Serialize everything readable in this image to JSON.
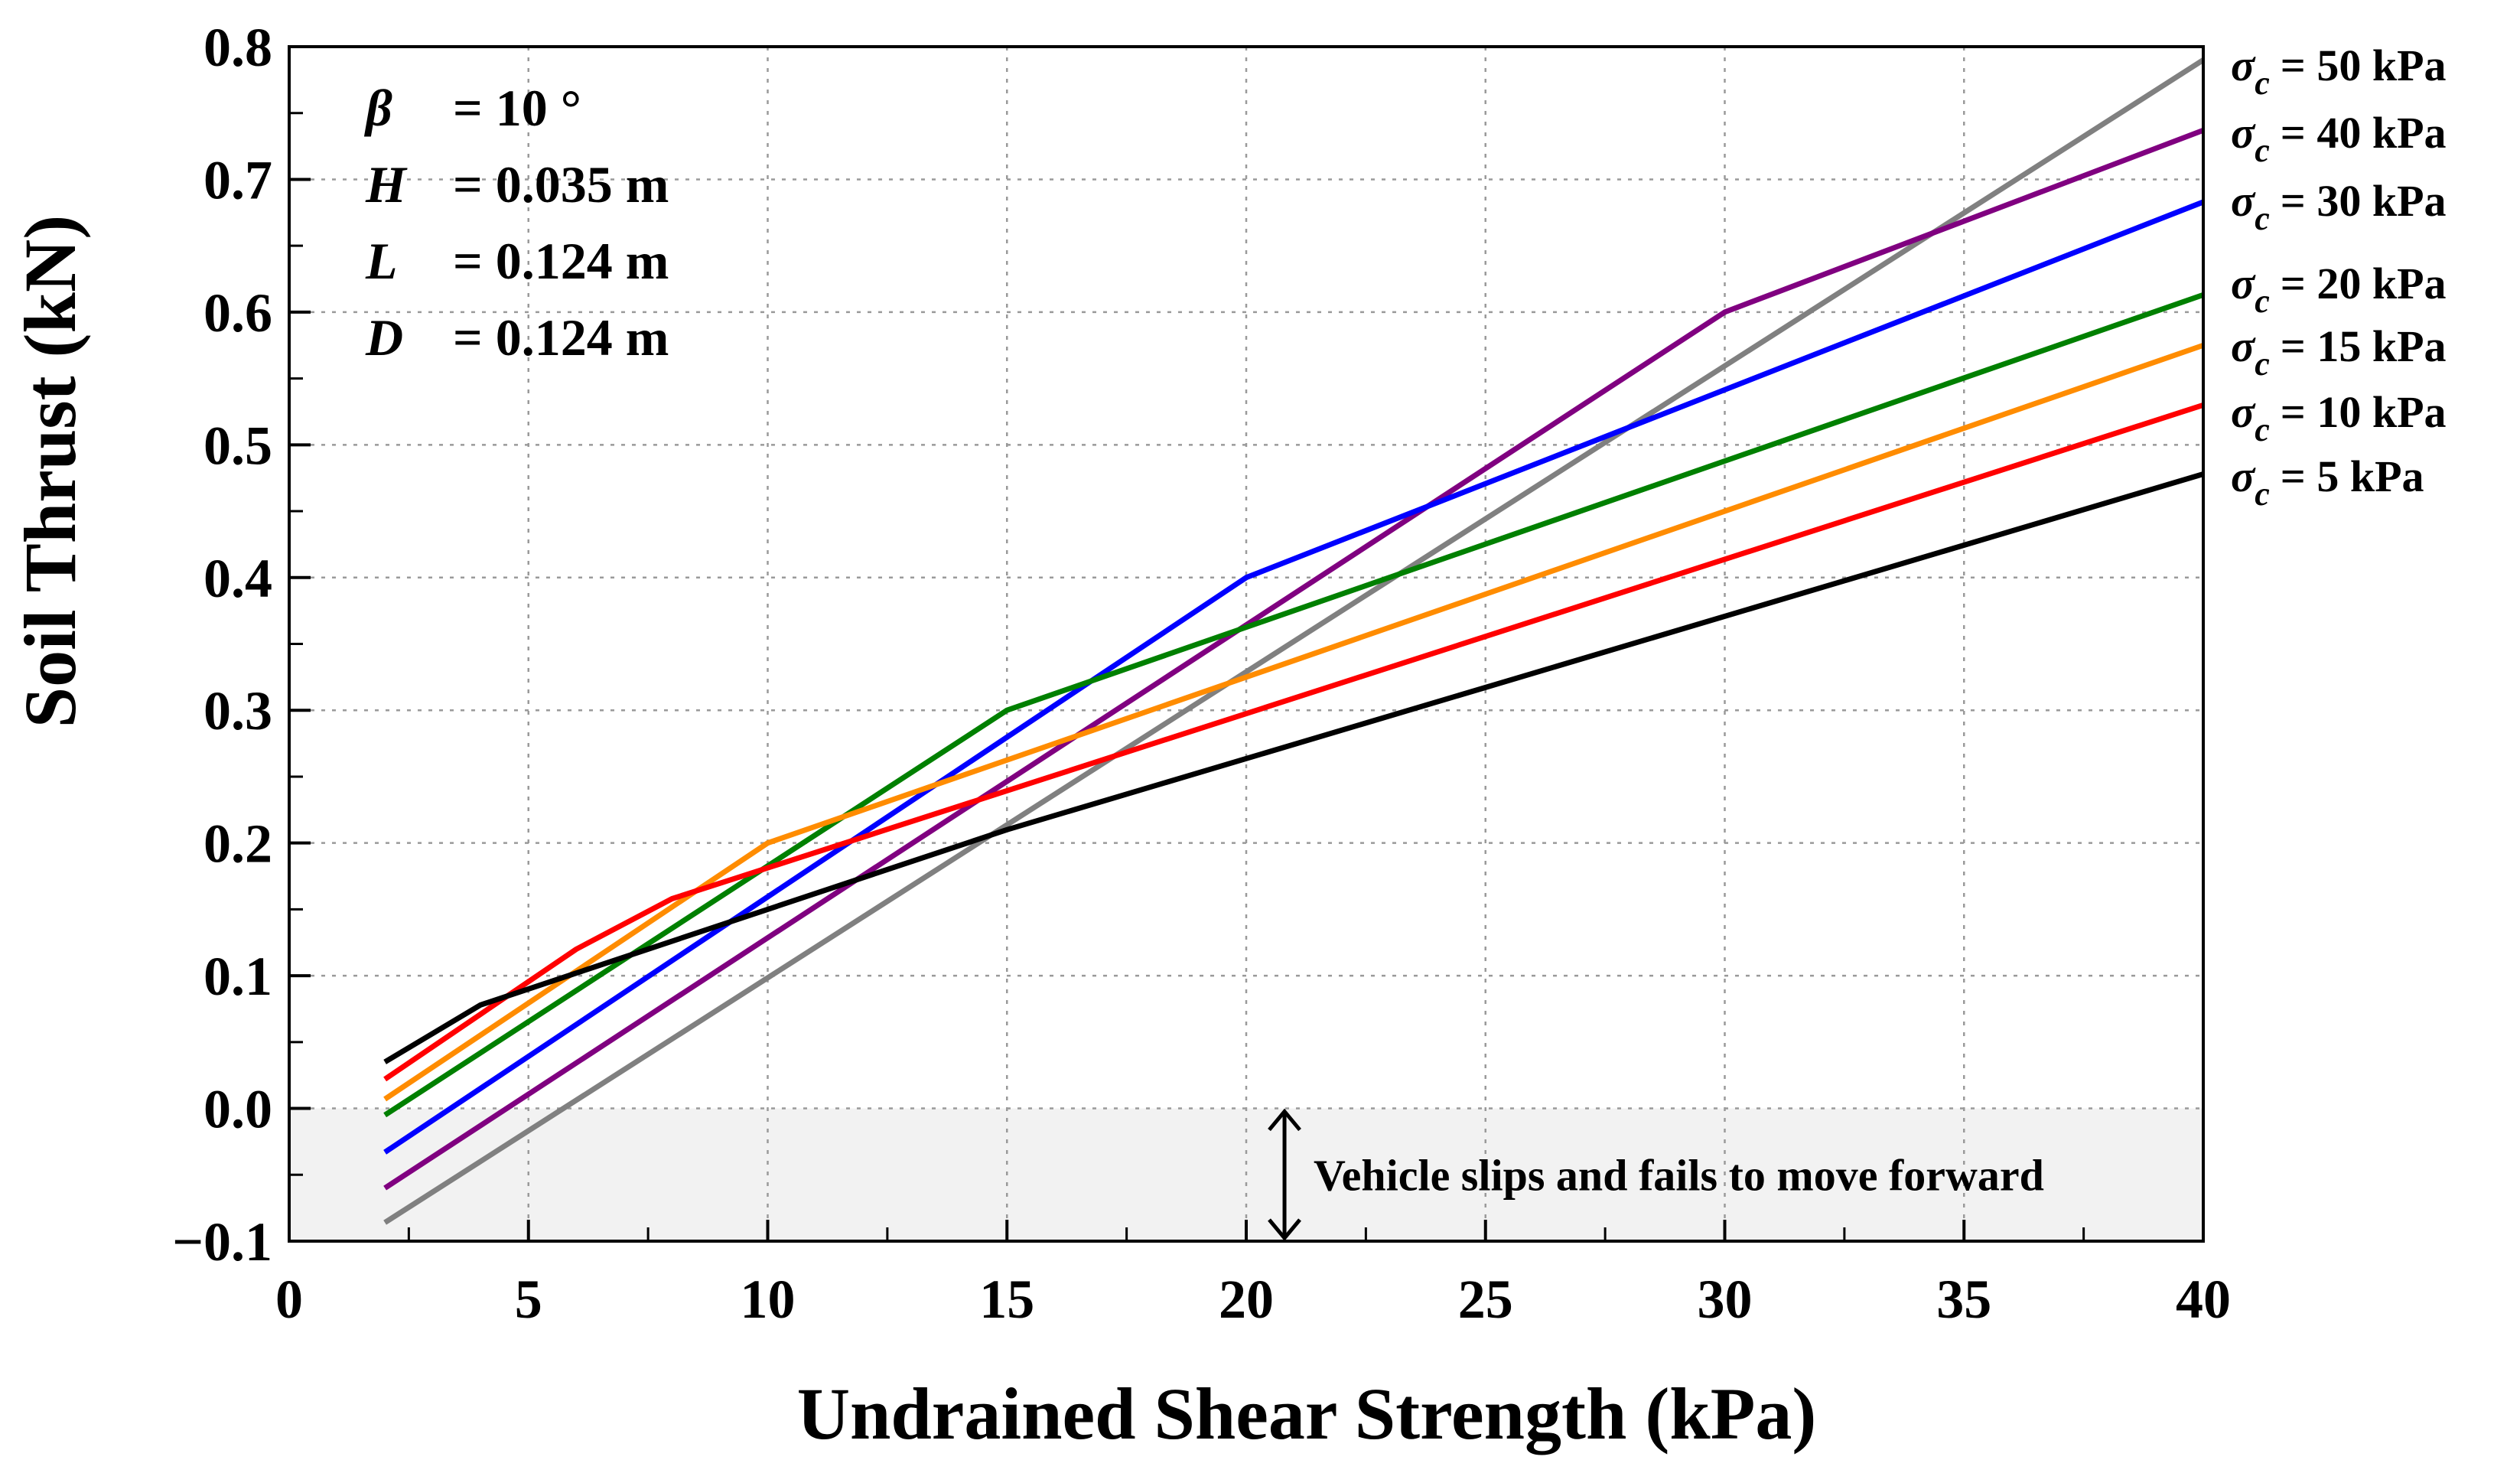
{
  "chart_data": {
    "type": "line",
    "xlabel": "Undrained Shear Strength (kPa)",
    "ylabel": "Soil Thrust (kN)",
    "xlim": [
      0,
      40
    ],
    "ylim": [
      -0.1,
      0.8
    ],
    "xticks": [
      0,
      5,
      10,
      15,
      20,
      25,
      30,
      35,
      40
    ],
    "yticks": [
      -0.1,
      0.0,
      0.1,
      0.2,
      0.3,
      0.4,
      0.5,
      0.6,
      0.7,
      0.8
    ],
    "ytick_labels": [
      "−0.1",
      "0.0",
      "0.1",
      "0.2",
      "0.3",
      "0.4",
      "0.5",
      "0.6",
      "0.7",
      "0.8"
    ],
    "grid": true,
    "parameters": [
      {
        "symbol": "β",
        "value": "= 10 °"
      },
      {
        "symbol": "H",
        "value": "= 0.035 m"
      },
      {
        "symbol": "L",
        "value": "= 0.124 m"
      },
      {
        "symbol": "D",
        "value": "= 0.124 m"
      }
    ],
    "shaded_region": {
      "y_from": -0.1,
      "y_to": 0.0,
      "color": "#f2f2f2"
    },
    "annotation": {
      "text": "Vehicle slips and fails to move forward",
      "x": 20.8,
      "y_from": 0.0,
      "y_to": -0.1
    },
    "series": [
      {
        "name": "5 kPa",
        "symbol": "σ",
        "subscript": "c",
        "label": "= 5 kPa",
        "color": "#000000",
        "x": [
          2,
          4,
          15,
          40
        ],
        "y": [
          0.035,
          0.078,
          0.21,
          0.478
        ]
      },
      {
        "name": "10 kPa",
        "symbol": "σ",
        "subscript": "c",
        "label": "= 10 kPa",
        "color": "#ff0000",
        "x": [
          2,
          6,
          8,
          40
        ],
        "y": [
          0.022,
          0.12,
          0.158,
          0.53
        ]
      },
      {
        "name": "15 kPa",
        "symbol": "σ",
        "subscript": "c",
        "label": "= 15 kPa",
        "color": "#ff8c00",
        "x": [
          2,
          10,
          40
        ],
        "y": [
          0.007,
          0.2,
          0.575
        ]
      },
      {
        "name": "20 kPa",
        "symbol": "σ",
        "subscript": "c",
        "label": "= 20 kPa",
        "color": "#008000",
        "x": [
          2,
          15,
          40
        ],
        "y": [
          -0.005,
          0.3,
          0.613
        ]
      },
      {
        "name": "30 kPa",
        "symbol": "σ",
        "subscript": "c",
        "label": "= 30 kPa",
        "color": "#0000ff",
        "x": [
          2,
          20,
          40
        ],
        "y": [
          -0.033,
          0.4,
          0.683
        ]
      },
      {
        "name": "40 kPa",
        "symbol": "σ",
        "subscript": "c",
        "label": "= 40 kPa",
        "color": "#800080",
        "x": [
          2,
          30,
          40
        ],
        "y": [
          -0.06,
          0.6,
          0.737
        ]
      },
      {
        "name": "50 kPa",
        "symbol": "σ",
        "subscript": "c",
        "label": "= 50 kPa",
        "color": "#808080",
        "x": [
          2,
          40
        ],
        "y": [
          -0.086,
          0.79
        ]
      }
    ]
  }
}
